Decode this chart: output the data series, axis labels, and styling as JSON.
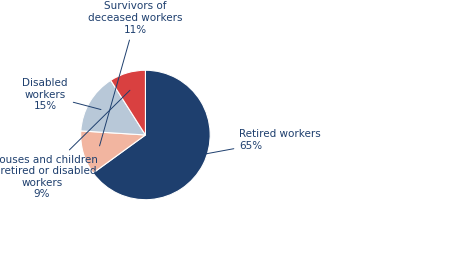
{
  "slices": [
    {
      "name": "Retired workers",
      "pct": "65%",
      "value": 65,
      "color": "#1e3f6e"
    },
    {
      "name": "Survivors of\ndeceased workers",
      "pct": "11%",
      "value": 11,
      "color": "#f2b5a0"
    },
    {
      "name": "Disabled\nworkers",
      "pct": "15%",
      "value": 15,
      "color": "#b8c8d8"
    },
    {
      "name": "Spouses and children\nof retired or disabled\nworkers",
      "pct": "9%",
      "value": 9,
      "color": "#d94040"
    }
  ],
  "label_color": "#1e3f6e",
  "label_fontsize": 7.5,
  "edge_color": "#ffffff",
  "figsize": [
    4.74,
    2.57
  ],
  "dpi": 100,
  "background_color": "#ffffff"
}
